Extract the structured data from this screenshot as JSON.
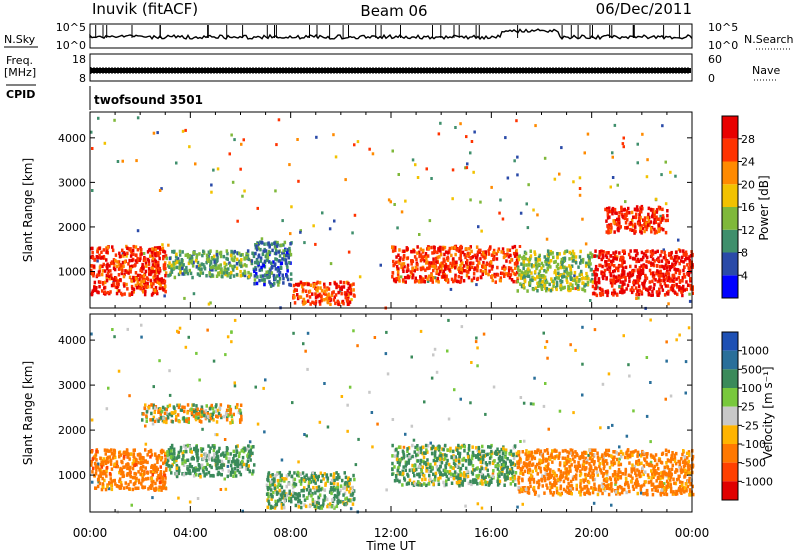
{
  "header": {
    "station": "Inuvik (fitACF)",
    "beam": "Beam 06",
    "date": "06/Dec/2011"
  },
  "noise_panel": {
    "left_label": "N.Sky",
    "left_ticks": [
      "10^5",
      "10^0"
    ],
    "right_label": "N.Search",
    "right_ticks": [
      "10^5",
      "10^0"
    ]
  },
  "freq_panel": {
    "left_label_1": "Freq.",
    "left_label_2": "[MHz]",
    "left_ticks": [
      "18",
      "8"
    ],
    "right_label": "Nave",
    "right_ticks": [
      "60",
      "0"
    ]
  },
  "cpid_panel": {
    "label": "CPID",
    "program": "twofsound 3501"
  },
  "colors": {
    "power_scale": [
      "#0000ff",
      "#2a4aa8",
      "#3f8f6c",
      "#7fb83a",
      "#f2c200",
      "#ff8a00",
      "#ff3300",
      "#e80000"
    ],
    "velocity_scale": [
      "#1e50b4",
      "#2a6f9a",
      "#3a8a5a",
      "#78c83c",
      "#c8c8c8",
      "#ffb400",
      "#ff7800",
      "#ff4000",
      "#e00000"
    ]
  },
  "chart_data": [
    {
      "type": "heatmap",
      "title": "Power",
      "xlabel": "",
      "ylabel": "Slant Range [km]",
      "x_ticks": [
        "00:00",
        "04:00",
        "08:00",
        "12:00",
        "16:00",
        "20:00",
        "00:00"
      ],
      "xlim": [
        0,
        24
      ],
      "y_ticks": [
        1000,
        2000,
        3000,
        4000
      ],
      "ylim": [
        180,
        4580
      ],
      "colorbar": {
        "label": "Power [dB]",
        "tick_labels": [
          "4",
          "8",
          "12",
          "16",
          "20",
          "24",
          "28"
        ],
        "range": [
          0,
          32
        ]
      },
      "regions": [
        {
          "x": [
            0.0,
            3.0
          ],
          "y": [
            500,
            1600
          ],
          "value": 27
        },
        {
          "x": [
            3.0,
            6.5
          ],
          "y": [
            900,
            1500
          ],
          "value": 12
        },
        {
          "x": [
            6.5,
            8.0
          ],
          "y": [
            700,
            1700
          ],
          "value": 8
        },
        {
          "x": [
            8.0,
            10.5
          ],
          "y": [
            300,
            800
          ],
          "value": 26
        },
        {
          "x": [
            12.0,
            17.0
          ],
          "y": [
            800,
            1600
          ],
          "value": 26
        },
        {
          "x": [
            17.0,
            20.0
          ],
          "y": [
            600,
            1500
          ],
          "value": 14
        },
        {
          "x": [
            20.0,
            24.0
          ],
          "y": [
            500,
            1500
          ],
          "value": 29
        },
        {
          "x": [
            20.5,
            23.0
          ],
          "y": [
            1900,
            2500
          ],
          "value": 28
        }
      ]
    },
    {
      "type": "heatmap",
      "title": "Velocity",
      "xlabel": "Time UT",
      "ylabel": "Slant Range [km]",
      "x_ticks": [
        "00:00",
        "04:00",
        "08:00",
        "12:00",
        "16:00",
        "20:00",
        "00:00"
      ],
      "xlim": [
        0,
        24
      ],
      "y_ticks": [
        1000,
        2000,
        3000,
        4000
      ],
      "ylim": [
        180,
        4580
      ],
      "colorbar": {
        "label": "Velocity [m s⁻¹]",
        "tick_labels": [
          "1000",
          "500",
          "100",
          "25",
          "-25",
          "-100",
          "-500",
          "-1000"
        ],
        "range": [
          -1200,
          1200
        ]
      },
      "regions": [
        {
          "x": [
            0.0,
            3.0
          ],
          "y": [
            700,
            1600
          ],
          "value": -300
        },
        {
          "x": [
            3.0,
            6.5
          ],
          "y": [
            1000,
            1700
          ],
          "value": 200
        },
        {
          "x": [
            7.0,
            10.5
          ],
          "y": [
            300,
            1100
          ],
          "value": 150
        },
        {
          "x": [
            12.0,
            17.0
          ],
          "y": [
            800,
            1700
          ],
          "value": 150
        },
        {
          "x": [
            17.0,
            24.0
          ],
          "y": [
            600,
            1600
          ],
          "value": -250
        },
        {
          "x": [
            2.0,
            6.0
          ],
          "y": [
            2200,
            2600
          ],
          "value": 0
        }
      ]
    }
  ]
}
